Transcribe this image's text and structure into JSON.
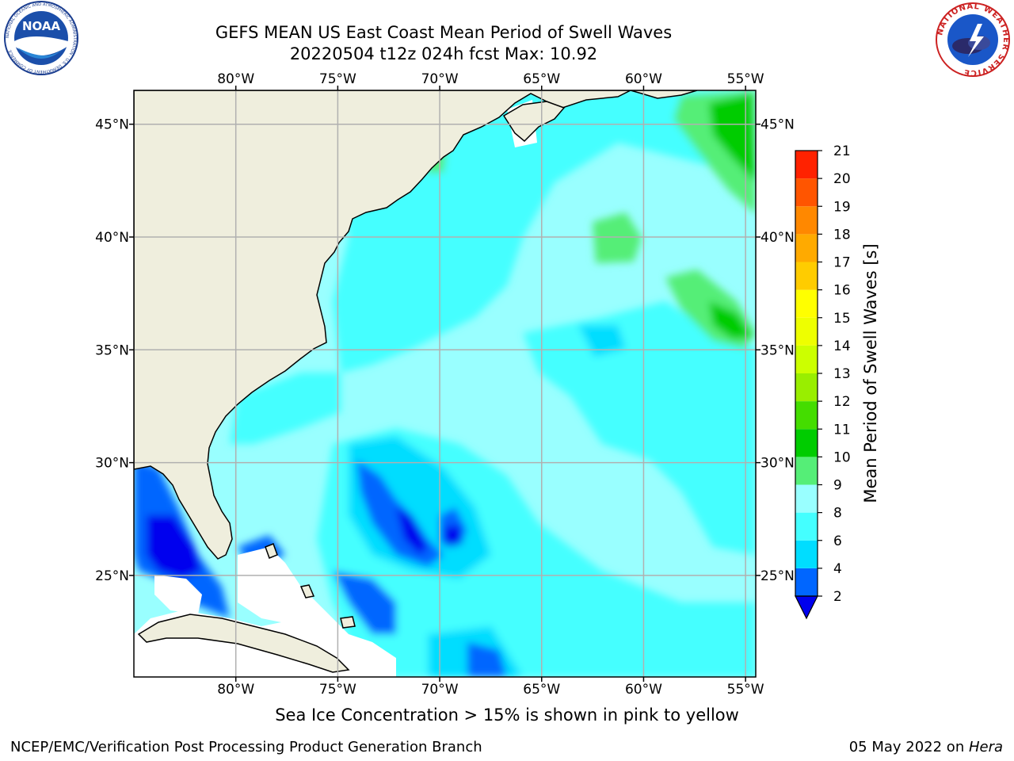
{
  "title_line1": "GEFS MEAN US East Coast Mean Period of Swell Waves",
  "title_line2": "20220504 t12z 024h fcst   Max: 10.92",
  "logos": {
    "noaa_text": "NOAA",
    "noaa_ring": "NATIONAL OCEANIC AND ATMOSPHERIC ADMINISTRATION · U.S. DEPARTMENT OF COMMERCE",
    "nws_ring": "NATIONAL WEATHER SERVICE"
  },
  "map": {
    "lon_range": [
      -85,
      -54.5
    ],
    "lat_range": [
      20.5,
      46.5
    ],
    "lon_ticks": [
      {
        "value": -80,
        "label": "80°W"
      },
      {
        "value": -75,
        "label": "75°W"
      },
      {
        "value": -70,
        "label": "70°W"
      },
      {
        "value": -65,
        "label": "65°W"
      },
      {
        "value": -60,
        "label": "60°W"
      },
      {
        "value": -55,
        "label": "55°W"
      }
    ],
    "lat_ticks": [
      {
        "value": 45,
        "label": "45°N"
      },
      {
        "value": 40,
        "label": "40°N"
      },
      {
        "value": 35,
        "label": "35°N"
      },
      {
        "value": 30,
        "label": "30°N"
      },
      {
        "value": 25,
        "label": "25°N"
      }
    ],
    "colors": {
      "land": "#efeedd",
      "ocean_base": "#99ffff",
      "grid": "#b0b0b0",
      "coast": "#000000"
    }
  },
  "colorbar": {
    "title": "Mean Period of Swell Waves [s]",
    "levels": [
      2,
      4,
      6,
      8,
      9,
      10,
      11,
      12,
      13,
      14,
      15,
      16,
      17,
      18,
      19,
      20,
      21
    ],
    "colors": [
      "#0066ff",
      "#00ddff",
      "#44ffff",
      "#99ffff",
      "#55ee77",
      "#00cc00",
      "#44dd00",
      "#99ee00",
      "#ccff00",
      "#eeff00",
      "#ffff00",
      "#ffcc00",
      "#ffaa00",
      "#ff8800",
      "#ff5500",
      "#ff2200"
    ],
    "under_color": "#0000ee"
  },
  "note": "Sea Ice Concentration > 15% is shown in pink to yellow",
  "footer_left": "NCEP/EMC/Verification Post Processing Product Generation Branch",
  "footer_right_date": "05 May 2022 on ",
  "footer_right_host": "Hera"
}
